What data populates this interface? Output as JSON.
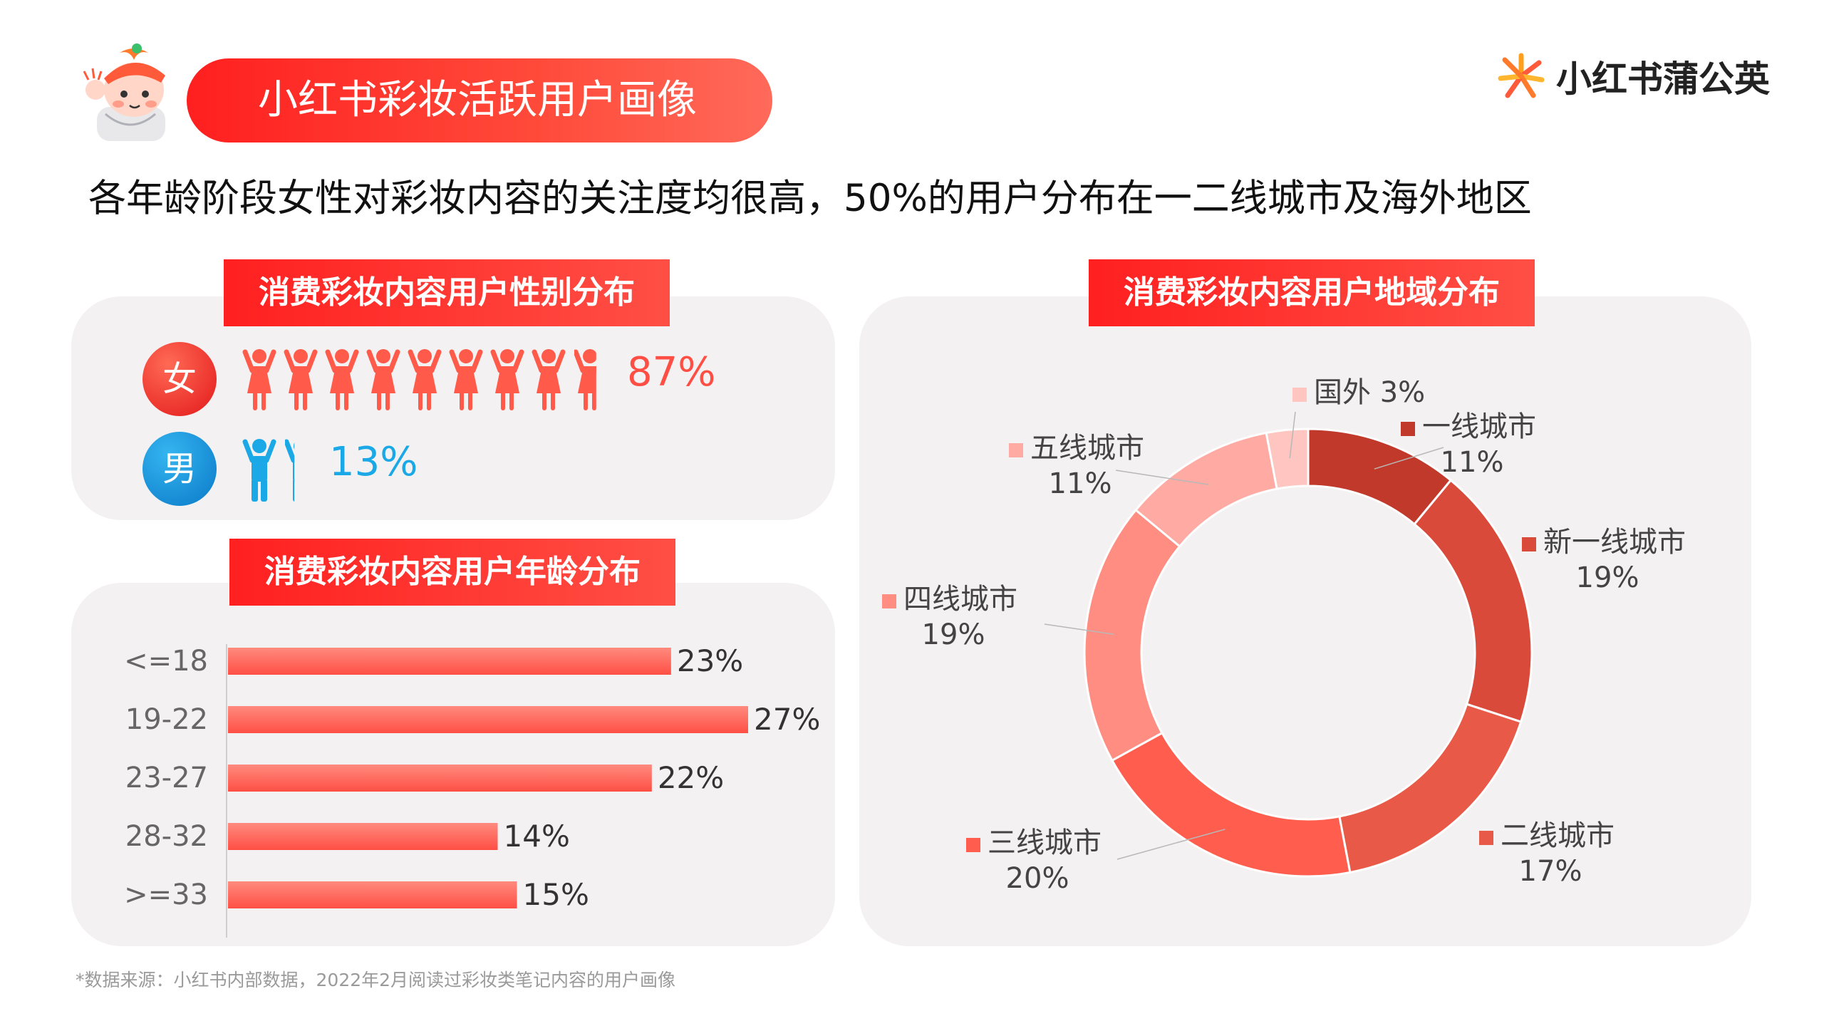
{
  "header": {
    "title": "小红书彩妆活跃用户画像",
    "brand": "小红书蒲公英",
    "subtitle": "各年龄阶段女性对彩妆内容的关注度均很高，50%的用户分布在一二线城市及海外地区"
  },
  "gender": {
    "label": "消费彩妆内容用户性别分布",
    "female_char": "女",
    "male_char": "男",
    "female_pct": "87%",
    "male_pct": "13%",
    "female_value": 87,
    "male_value": 13,
    "female_color": "#ff5a4a",
    "male_color": "#1aa8e6"
  },
  "age": {
    "label": "消费彩妆内容用户年龄分布"
  },
  "region": {
    "label": "消费彩妆内容用户地域分布"
  },
  "footnote": "*数据来源：小红书内部数据，2022年2月阅读过彩妆类笔记内容的用户画像",
  "chart_data": [
    {
      "type": "bar",
      "orientation": "horizontal",
      "categories": [
        "<=18",
        "19-22",
        "23-27",
        "28-32",
        ">=33"
      ],
      "values": [
        23,
        27,
        22,
        14,
        15
      ],
      "value_labels": [
        "23%",
        "27%",
        "22%",
        "14%",
        "15%"
      ],
      "color": "#ff4f45",
      "xlim": [
        0,
        30
      ]
    },
    {
      "type": "pie",
      "donut": true,
      "slices": [
        {
          "label": "一线城市",
          "value": 11,
          "pct": "11%",
          "color": "#c0392b"
        },
        {
          "label": "新一线城市",
          "value": 19,
          "pct": "19%",
          "color": "#d94a3b"
        },
        {
          "label": "二线城市",
          "value": 17,
          "pct": "17%",
          "color": "#e85a47"
        },
        {
          "label": "三线城市",
          "value": 20,
          "pct": "20%",
          "color": "#ff5d4d"
        },
        {
          "label": "四线城市",
          "value": 19,
          "pct": "19%",
          "color": "#ff8d82"
        },
        {
          "label": "五线城市",
          "value": 11,
          "pct": "11%",
          "color": "#ffaaa3"
        },
        {
          "label": "国外",
          "value": 3,
          "pct": "3%",
          "color": "#ffc5c0"
        }
      ]
    }
  ]
}
